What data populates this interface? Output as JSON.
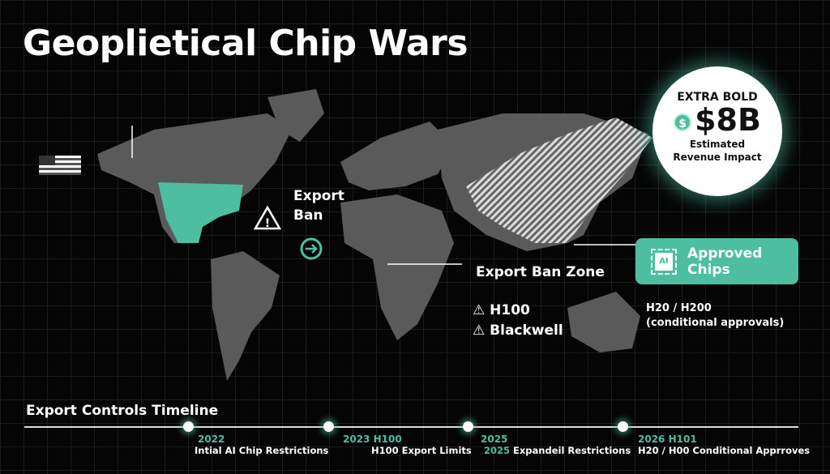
{
  "title": "Geoplietical Chip Wars",
  "colors": {
    "accent": "#4dbfa0",
    "map": "#5a5a5a",
    "background": "#050505"
  },
  "map_labels": {
    "export_ban": "Export Ban",
    "export_ban_zone": "Export Ban Zone",
    "h100": "H100",
    "blackwell": "Blackwell",
    "h20_h200": "H20 / H200",
    "conditional": "(conditional approvals)"
  },
  "icons": [
    "us-flag-icon",
    "warning-icon",
    "arrow-right-circle-icon",
    "dollar-icon",
    "ai-chip-icon"
  ],
  "revenue": {
    "heading": "EXTRA BOLD",
    "value": "$8B",
    "label": "Estimated Revenue Impact"
  },
  "approved": {
    "label": "Approved Chips",
    "chip_text": "AI"
  },
  "timeline": {
    "title": "Export Controls Timeline",
    "events": [
      {
        "year": "2022",
        "desc": "Intial AI Chip Restrictions"
      },
      {
        "year": "2023 H100",
        "desc": "H100 Export Limits"
      },
      {
        "year": "2025",
        "desc_prefix": "2025",
        "desc": "Expandeil Restrictions"
      },
      {
        "year": "2026 H101",
        "desc": "H20 / H00 Conditional Apprroves"
      }
    ]
  }
}
